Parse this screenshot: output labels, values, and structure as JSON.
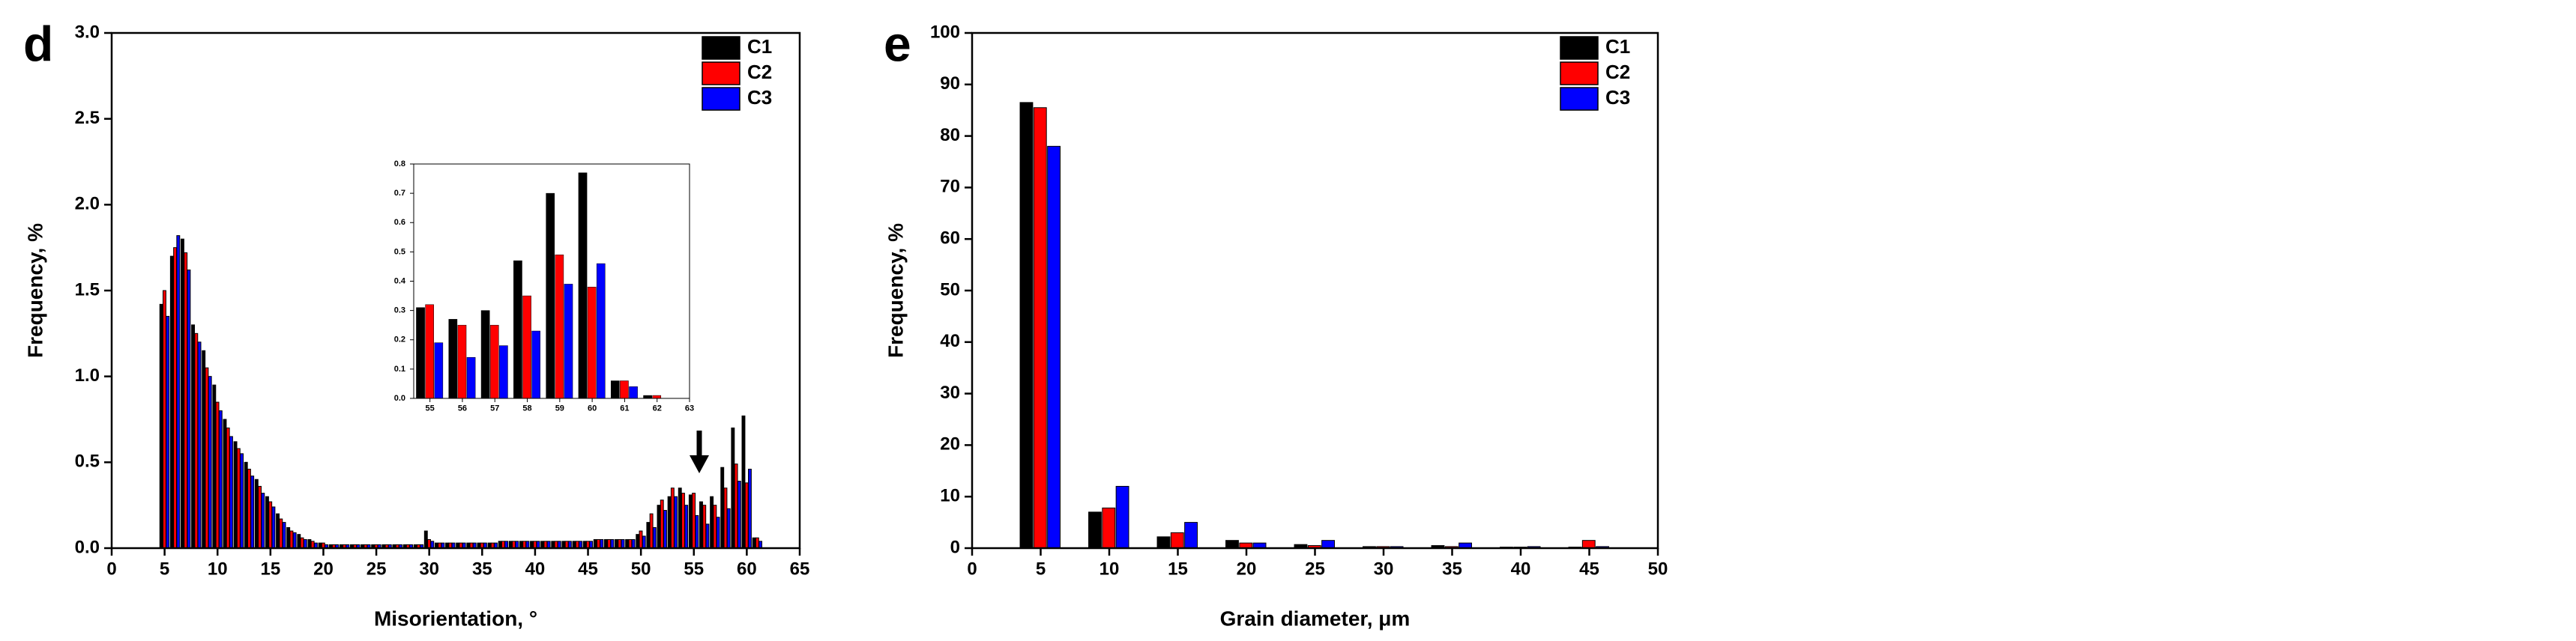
{
  "chart_data": [
    {
      "type": "bar",
      "panel": "d",
      "x_label": "Misorientation, °",
      "y_label": "Frequency, %",
      "x": [
        5,
        6,
        7,
        8,
        9,
        10,
        11,
        12,
        13,
        14,
        15,
        16,
        17,
        18,
        19,
        20,
        21,
        22,
        23,
        24,
        25,
        26,
        27,
        28,
        29,
        30,
        31,
        32,
        33,
        34,
        35,
        36,
        37,
        38,
        39,
        40,
        41,
        42,
        43,
        44,
        45,
        46,
        47,
        48,
        49,
        50,
        51,
        52,
        53,
        54,
        55,
        56,
        57,
        58,
        59,
        60,
        61
      ],
      "series": [
        {
          "name": "C1",
          "color": "#000000",
          "values": [
            1.42,
            1.7,
            1.8,
            1.3,
            1.15,
            0.95,
            0.75,
            0.62,
            0.5,
            0.4,
            0.3,
            0.2,
            0.12,
            0.08,
            0.05,
            0.03,
            0.02,
            0.02,
            0.02,
            0.02,
            0.02,
            0.02,
            0.02,
            0.02,
            0.02,
            0.1,
            0.03,
            0.03,
            0.03,
            0.03,
            0.03,
            0.03,
            0.04,
            0.04,
            0.04,
            0.04,
            0.04,
            0.04,
            0.04,
            0.04,
            0.04,
            0.05,
            0.05,
            0.05,
            0.05,
            0.08,
            0.15,
            0.25,
            0.3,
            0.35,
            0.31,
            0.27,
            0.3,
            0.47,
            0.7,
            0.77,
            0.06
          ]
        },
        {
          "name": "C2",
          "color": "#ff0000",
          "values": [
            1.5,
            1.75,
            1.72,
            1.25,
            1.05,
            0.85,
            0.7,
            0.58,
            0.46,
            0.36,
            0.27,
            0.17,
            0.1,
            0.06,
            0.04,
            0.03,
            0.02,
            0.02,
            0.02,
            0.02,
            0.02,
            0.02,
            0.02,
            0.02,
            0.02,
            0.05,
            0.03,
            0.03,
            0.03,
            0.03,
            0.03,
            0.03,
            0.04,
            0.04,
            0.04,
            0.04,
            0.04,
            0.04,
            0.04,
            0.04,
            0.04,
            0.05,
            0.05,
            0.05,
            0.05,
            0.1,
            0.2,
            0.28,
            0.35,
            0.32,
            0.32,
            0.25,
            0.25,
            0.35,
            0.49,
            0.38,
            0.06
          ]
        },
        {
          "name": "C3",
          "color": "#0000ff",
          "values": [
            1.35,
            1.82,
            1.62,
            1.2,
            1.0,
            0.8,
            0.65,
            0.55,
            0.42,
            0.32,
            0.24,
            0.15,
            0.09,
            0.05,
            0.03,
            0.02,
            0.02,
            0.02,
            0.02,
            0.02,
            0.02,
            0.02,
            0.02,
            0.02,
            0.02,
            0.04,
            0.03,
            0.03,
            0.03,
            0.03,
            0.03,
            0.03,
            0.04,
            0.04,
            0.04,
            0.04,
            0.04,
            0.04,
            0.04,
            0.04,
            0.04,
            0.05,
            0.05,
            0.05,
            0.05,
            0.07,
            0.12,
            0.22,
            0.3,
            0.25,
            0.19,
            0.14,
            0.18,
            0.23,
            0.39,
            0.46,
            0.04
          ]
        }
      ],
      "xlim": [
        0,
        65
      ],
      "xticks": [
        0,
        5,
        10,
        15,
        20,
        25,
        30,
        35,
        40,
        45,
        50,
        55,
        60,
        65
      ],
      "ylim": [
        0,
        3
      ],
      "yticks": [
        {
          "value": 0,
          "label": "0.0"
        },
        0.5,
        {
          "value": 1,
          "label": "1.0"
        },
        1.5,
        {
          "value": 2,
          "label": "2.0"
        },
        2.5,
        {
          "value": 3,
          "label": "3.0"
        }
      ],
      "legend": "top-right"
    },
    {
      "type": "bar",
      "x": [
        55,
        56,
        57,
        58,
        59,
        60,
        61,
        62
      ],
      "series": [
        {
          "color": "#000000",
          "values": [
            0.31,
            0.27,
            0.3,
            0.47,
            0.7,
            0.77,
            0.06,
            0.01
          ]
        },
        {
          "color": "#ff0000",
          "values": [
            0.32,
            0.25,
            0.25,
            0.35,
            0.49,
            0.38,
            0.06,
            0.01
          ]
        },
        {
          "color": "#0000ff",
          "values": [
            0.19,
            0.14,
            0.18,
            0.23,
            0.39,
            0.46,
            0.04,
            0
          ]
        }
      ],
      "xlim": [
        54.5,
        63
      ],
      "xticks": [
        55,
        56,
        57,
        58,
        59,
        60,
        61,
        62,
        63
      ],
      "ylim": [
        0,
        0.8
      ],
      "yticks": [
        {
          "value": 0,
          "label": "0.0"
        },
        0.1,
        0.2,
        0.3,
        0.4,
        0.5,
        0.6,
        0.7,
        0.8
      ]
    },
    {
      "type": "bar",
      "panel": "e",
      "x_label": "Grain diameter, μm",
      "y_label": "Frequency, %",
      "x": [
        5,
        10,
        15,
        20,
        25,
        30,
        35,
        40,
        45
      ],
      "series": [
        {
          "name": "C1",
          "color": "#000000",
          "values": [
            86.5,
            7,
            2.2,
            1.5,
            0.7,
            0.3,
            0.5,
            0.2,
            0.2
          ]
        },
        {
          "name": "C2",
          "color": "#ff0000",
          "values": [
            85.5,
            7.8,
            3,
            1,
            0.5,
            0.3,
            0.3,
            0.2,
            1.5
          ]
        },
        {
          "name": "C3",
          "color": "#0000ff",
          "values": [
            78,
            12,
            5,
            1,
            1.5,
            0.3,
            1,
            0.3,
            0.3
          ]
        }
      ],
      "xlim": [
        0,
        50
      ],
      "xticks": [
        0,
        5,
        10,
        15,
        20,
        25,
        30,
        35,
        40,
        45,
        50
      ],
      "ylim": [
        0,
        100
      ],
      "yticks": [
        0,
        10,
        20,
        30,
        40,
        50,
        60,
        70,
        80,
        90,
        100
      ],
      "legend": "top-right"
    }
  ]
}
